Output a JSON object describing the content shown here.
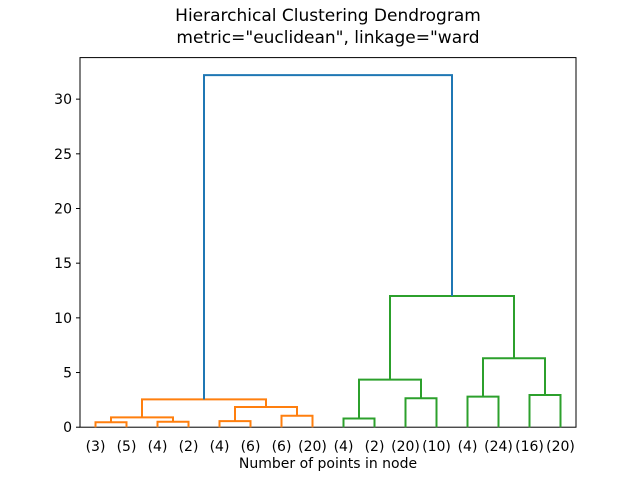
{
  "chart_data": {
    "type": "dendrogram",
    "title": "Hierarchical Clustering Dendrogram",
    "subtitle": "metric=\"euclidean\", linkage=\"ward",
    "xlabel": "Number of points in node",
    "leaf_labels": [
      "(3)",
      "(5)",
      "(4)",
      "(2)",
      "(4)",
      "(6)",
      "(6)",
      "(20)",
      "(4)",
      "(2)",
      "(20)",
      "(10)",
      "(4)",
      "(24)",
      "(16)",
      "(20)"
    ],
    "leaf_counts": [
      3,
      5,
      4,
      2,
      4,
      6,
      6,
      20,
      4,
      2,
      20,
      10,
      4,
      24,
      16,
      20
    ],
    "yticks": [
      0,
      5,
      10,
      15,
      20,
      25,
      30
    ],
    "ylim": [
      0,
      33.8
    ],
    "xlim": [
      0,
      160
    ],
    "grid": false,
    "legend": null,
    "colors": {
      "above_threshold_link": "#1f77b4",
      "left_cluster_link": "#ff7f0e",
      "right_cluster_link": "#2ca02c",
      "text": "#000000",
      "spine": "#000000",
      "background": "#ffffff"
    },
    "line_width": 2,
    "merges": [
      {
        "id": "M0",
        "left": "L0",
        "right": "L1",
        "height": 0.45,
        "color": "#ff7f0e"
      },
      {
        "id": "M1",
        "left": "L2",
        "right": "L3",
        "height": 0.5,
        "color": "#ff7f0e"
      },
      {
        "id": "M2",
        "left": "M0",
        "right": "M1",
        "height": 0.9,
        "color": "#ff7f0e"
      },
      {
        "id": "M3",
        "left": "L4",
        "right": "L5",
        "height": 0.55,
        "color": "#ff7f0e"
      },
      {
        "id": "M4",
        "left": "L6",
        "right": "L7",
        "height": 1.05,
        "color": "#ff7f0e"
      },
      {
        "id": "M5",
        "left": "M3",
        "right": "M4",
        "height": 1.85,
        "color": "#ff7f0e"
      },
      {
        "id": "M6",
        "left": "M2",
        "right": "M5",
        "height": 2.55,
        "color": "#ff7f0e"
      },
      {
        "id": "M7",
        "left": "L8",
        "right": "L9",
        "height": 0.8,
        "color": "#2ca02c"
      },
      {
        "id": "M8",
        "left": "L10",
        "right": "L11",
        "height": 2.65,
        "color": "#2ca02c"
      },
      {
        "id": "M9",
        "left": "M7",
        "right": "M8",
        "height": 4.35,
        "color": "#2ca02c"
      },
      {
        "id": "M10",
        "left": "L12",
        "right": "L13",
        "height": 2.8,
        "color": "#2ca02c"
      },
      {
        "id": "M11",
        "left": "L14",
        "right": "L15",
        "height": 2.95,
        "color": "#2ca02c"
      },
      {
        "id": "M12",
        "left": "M10",
        "right": "M11",
        "height": 6.3,
        "color": "#2ca02c"
      },
      {
        "id": "M13",
        "left": "M9",
        "right": "M12",
        "height": 12.0,
        "color": "#2ca02c"
      },
      {
        "id": "M14",
        "left": "M6",
        "right": "M13",
        "height": 32.2,
        "color": "#1f77b4"
      }
    ]
  }
}
